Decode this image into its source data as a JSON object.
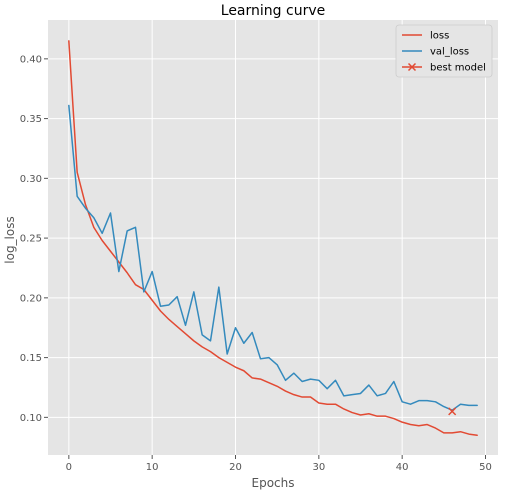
{
  "chart_data": {
    "type": "line",
    "title": "Learning curve",
    "xlabel": "Epochs",
    "ylabel": "log_loss",
    "xlim": [
      -2.5,
      51.5
    ],
    "ylim": [
      0.0685,
      0.4325
    ],
    "xticks": [
      0,
      10,
      20,
      30,
      40,
      50
    ],
    "yticks": [
      0.1,
      0.15,
      0.2,
      0.25,
      0.3,
      0.35,
      0.4
    ],
    "xtick_labels": [
      "0",
      "10",
      "20",
      "30",
      "40",
      "50"
    ],
    "ytick_labels": [
      "0.10",
      "0.15",
      "0.20",
      "0.25",
      "0.30",
      "0.35",
      "0.40"
    ],
    "grid": true,
    "legend_position": "top-right",
    "x": [
      0,
      1,
      2,
      3,
      4,
      5,
      6,
      7,
      8,
      9,
      10,
      11,
      12,
      13,
      14,
      15,
      16,
      17,
      18,
      19,
      20,
      21,
      22,
      23,
      24,
      25,
      26,
      27,
      28,
      29,
      30,
      31,
      32,
      33,
      34,
      35,
      36,
      37,
      38,
      39,
      40,
      41,
      42,
      43,
      44,
      45,
      46,
      47,
      48,
      49
    ],
    "series": [
      {
        "name": "loss",
        "color": "#E24A33",
        "values": [
          0.415,
          0.305,
          0.278,
          0.259,
          0.248,
          0.239,
          0.23,
          0.221,
          0.211,
          0.207,
          0.198,
          0.189,
          0.182,
          0.176,
          0.17,
          0.164,
          0.159,
          0.155,
          0.15,
          0.146,
          0.142,
          0.139,
          0.133,
          0.132,
          0.129,
          0.126,
          0.122,
          0.119,
          0.117,
          0.117,
          0.112,
          0.111,
          0.111,
          0.107,
          0.104,
          0.102,
          0.103,
          0.101,
          0.101,
          0.099,
          0.096,
          0.094,
          0.093,
          0.094,
          0.091,
          0.087,
          0.087,
          0.088,
          0.086,
          0.085
        ]
      },
      {
        "name": "val_loss",
        "color": "#348ABD",
        "values": [
          0.361,
          0.285,
          0.275,
          0.267,
          0.254,
          0.271,
          0.222,
          0.256,
          0.259,
          0.205,
          0.222,
          0.193,
          0.194,
          0.201,
          0.177,
          0.205,
          0.169,
          0.164,
          0.209,
          0.153,
          0.175,
          0.162,
          0.171,
          0.149,
          0.15,
          0.144,
          0.131,
          0.137,
          0.13,
          0.132,
          0.131,
          0.124,
          0.131,
          0.118,
          0.119,
          0.12,
          0.127,
          0.118,
          0.12,
          0.13,
          0.113,
          0.111,
          0.114,
          0.114,
          0.113,
          0.109,
          0.106,
          0.111,
          0.11,
          0.11
        ]
      }
    ],
    "best_model": {
      "name": "best model",
      "x": 46,
      "y": 0.105,
      "color": "#E24A33",
      "marker": "x"
    }
  }
}
